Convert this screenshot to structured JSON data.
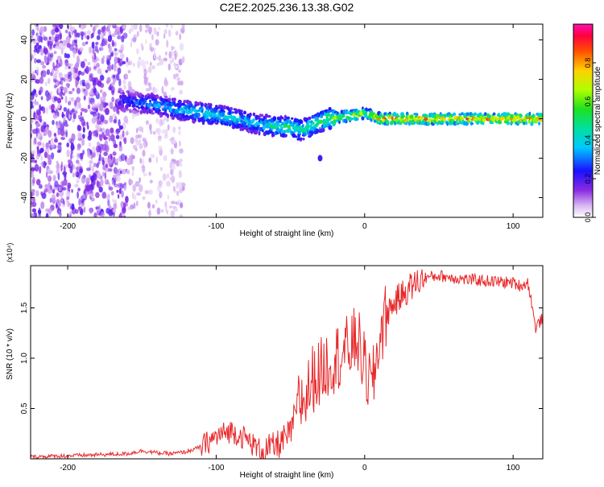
{
  "title": "C2E2.2025.236.13.38.G02",
  "colors": {
    "snr_line": "#e8282a",
    "frame": "#000000",
    "background": "#ffffff"
  },
  "colorbar": {
    "label": "Normalized spectral amplitude",
    "ticks": [
      "0.0",
      "0.2",
      "0.4",
      "0.6",
      "0.8"
    ],
    "tick_values": [
      0.0,
      0.2,
      0.4,
      0.6,
      0.8
    ],
    "range": [
      0,
      1
    ]
  },
  "chart_data": [
    {
      "type": "heatmap",
      "name": "spectrogram",
      "xlabel": "Height of straight line (km)",
      "ylabel": "Frequency (Hz)",
      "xlim": [
        -225,
        120
      ],
      "ylim": [
        -50,
        48
      ],
      "x_ticks": [
        -200,
        -100,
        0,
        100
      ],
      "x_tick_labels": [
        "-200",
        "-100",
        "0",
        "100"
      ],
      "y_ticks": [
        -40,
        -20,
        0,
        20,
        40
      ],
      "y_tick_labels": [
        "-40",
        "-20",
        "0",
        "20",
        "40"
      ],
      "ridge": {
        "x": [
          -160,
          -140,
          -120,
          -100,
          -80,
          -70,
          -60,
          -50,
          -42,
          -35,
          -25,
          -15,
          -5,
          0,
          10,
          30,
          60,
          90,
          120
        ],
        "freq": [
          9,
          7,
          4,
          2,
          -1,
          -3,
          -4,
          -4,
          -6,
          -3,
          0,
          1,
          2,
          3,
          0,
          0,
          0,
          0,
          0
        ],
        "peak_amplitude": [
          0.3,
          0.4,
          0.45,
          0.5,
          0.45,
          0.45,
          0.55,
          0.6,
          0.55,
          0.55,
          0.65,
          0.75,
          0.85,
          0.7,
          0.95,
          0.95,
          0.95,
          0.95,
          0.95
        ]
      },
      "noise_region": {
        "x_range": [
          -225,
          -122
        ],
        "dense_x_max": -160,
        "mean_amplitude": 0.15
      },
      "outlier": {
        "x": -30,
        "freq": -20,
        "amplitude": 0.2
      }
    },
    {
      "type": "line",
      "name": "snr",
      "xlabel": "Height of straight line (km)",
      "ylabel": "SNR (10 * v/v)",
      "multiplier_label": "(x10⁴)",
      "xlim": [
        -225,
        120
      ],
      "ylim": [
        0,
        1.92
      ],
      "x_ticks": [
        -200,
        -100,
        0,
        100
      ],
      "x_tick_labels": [
        "-200",
        "-100",
        "0",
        "100"
      ],
      "y_ticks": [
        0.5,
        1.0,
        1.5
      ],
      "y_tick_labels": [
        "0.5",
        "1.0",
        "1.5"
      ],
      "series": [
        {
          "name": "SNR",
          "x": [
            -225,
            -200,
            -160,
            -150,
            -140,
            -130,
            -120,
            -110,
            -100,
            -90,
            -80,
            -70,
            -60,
            -50,
            -45,
            -40,
            -35,
            -30,
            -25,
            -20,
            -15,
            -10,
            -5,
            0,
            5,
            10,
            15,
            20,
            30,
            40,
            50,
            60,
            70,
            80,
            90,
            100,
            105,
            110,
            112,
            115,
            120
          ],
          "y": [
            0.02,
            0.03,
            0.05,
            0.08,
            0.06,
            0.05,
            0.07,
            0.12,
            0.22,
            0.28,
            0.2,
            0.08,
            0.12,
            0.25,
            0.55,
            0.6,
            0.8,
            0.85,
            0.95,
            1.0,
            1.05,
            1.1,
            1.2,
            0.9,
            0.7,
            1.2,
            1.45,
            1.55,
            1.7,
            1.8,
            1.82,
            1.8,
            1.78,
            1.77,
            1.76,
            1.75,
            1.72,
            1.75,
            1.6,
            1.3,
            1.4
          ]
        }
      ]
    }
  ]
}
